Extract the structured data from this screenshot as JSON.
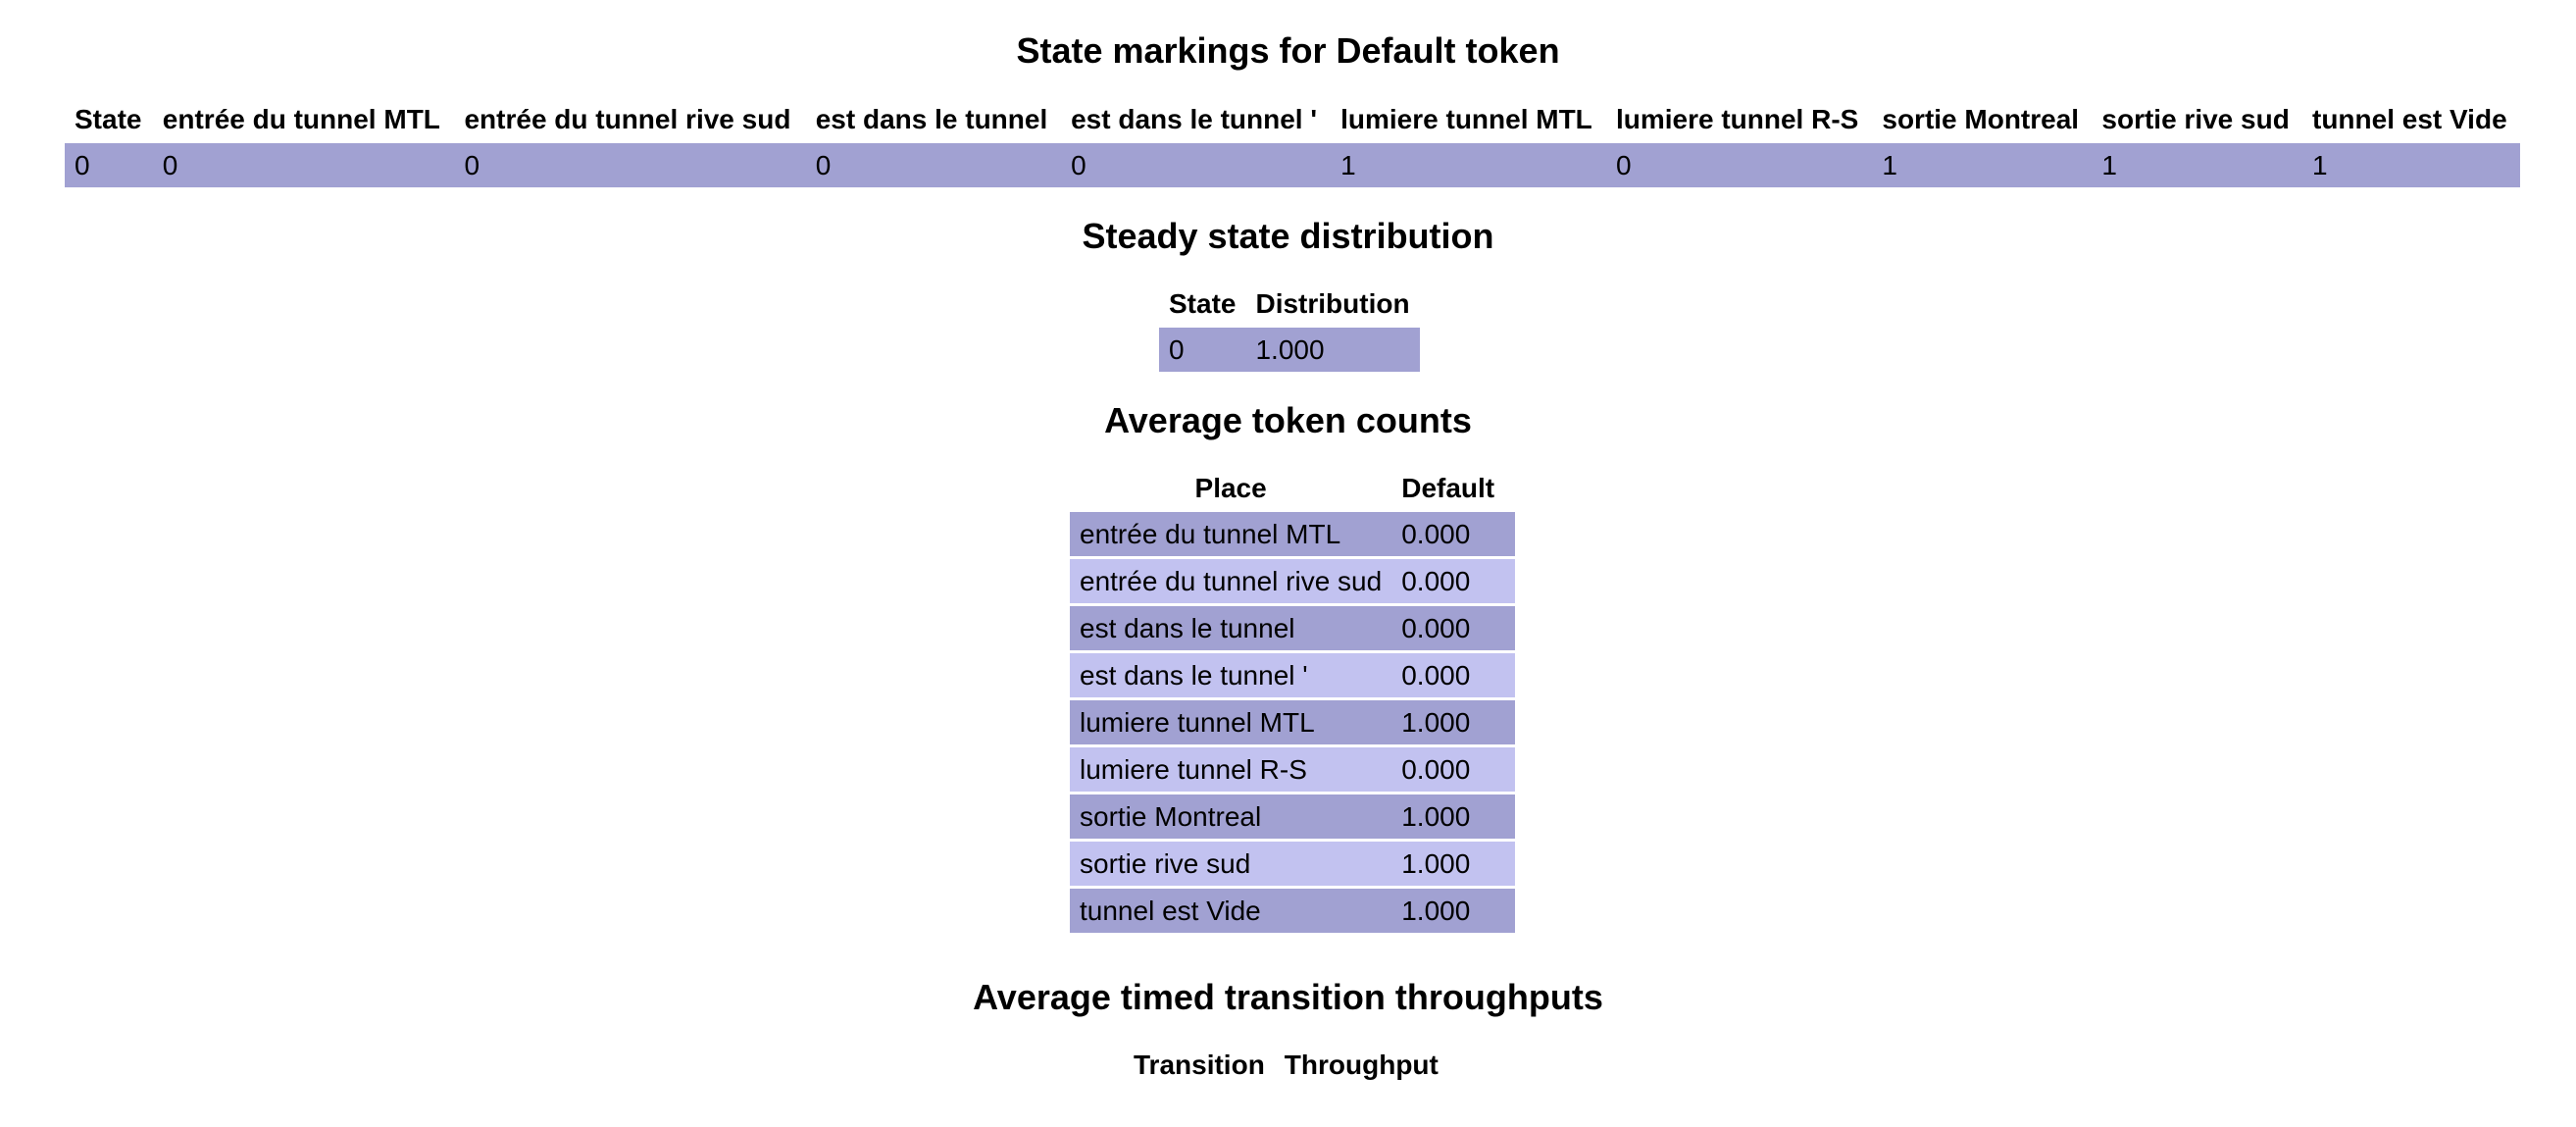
{
  "markings": {
    "title": "State markings for Default token",
    "headers": [
      "State",
      "entrée du tunnel MTL",
      "entrée du tunnel rive sud",
      "est dans le tunnel",
      "est dans le tunnel '",
      "lumiere tunnel MTL",
      "lumiere tunnel R-S",
      "sortie Montreal",
      "sortie rive sud",
      "tunnel est Vide"
    ],
    "rows": [
      [
        "0",
        "0",
        "0",
        "0",
        "0",
        "1",
        "0",
        "1",
        "1",
        "1"
      ]
    ]
  },
  "steady": {
    "title": "Steady state distribution",
    "headers": [
      "State",
      "Distribution"
    ],
    "rows": [
      [
        "0",
        "1.000"
      ]
    ]
  },
  "avg_tokens": {
    "title": "Average token counts",
    "headers": [
      "Place",
      "Default"
    ],
    "rows": [
      [
        "entrée du tunnel MTL",
        "0.000"
      ],
      [
        "entrée du tunnel rive sud",
        "0.000"
      ],
      [
        "est dans le tunnel",
        "0.000"
      ],
      [
        "est dans le tunnel '",
        "0.000"
      ],
      [
        "lumiere tunnel MTL",
        "1.000"
      ],
      [
        "lumiere tunnel R-S",
        "0.000"
      ],
      [
        "sortie Montreal",
        "1.000"
      ],
      [
        "sortie rive sud",
        "1.000"
      ],
      [
        "tunnel est Vide",
        "1.000"
      ]
    ]
  },
  "throughputs": {
    "title": "Average timed transition throughputs",
    "headers": [
      "Transition",
      "Throughput"
    ]
  },
  "colors": {
    "row_dark": "#a1a1d2",
    "row_light": "#c2c2f0"
  }
}
